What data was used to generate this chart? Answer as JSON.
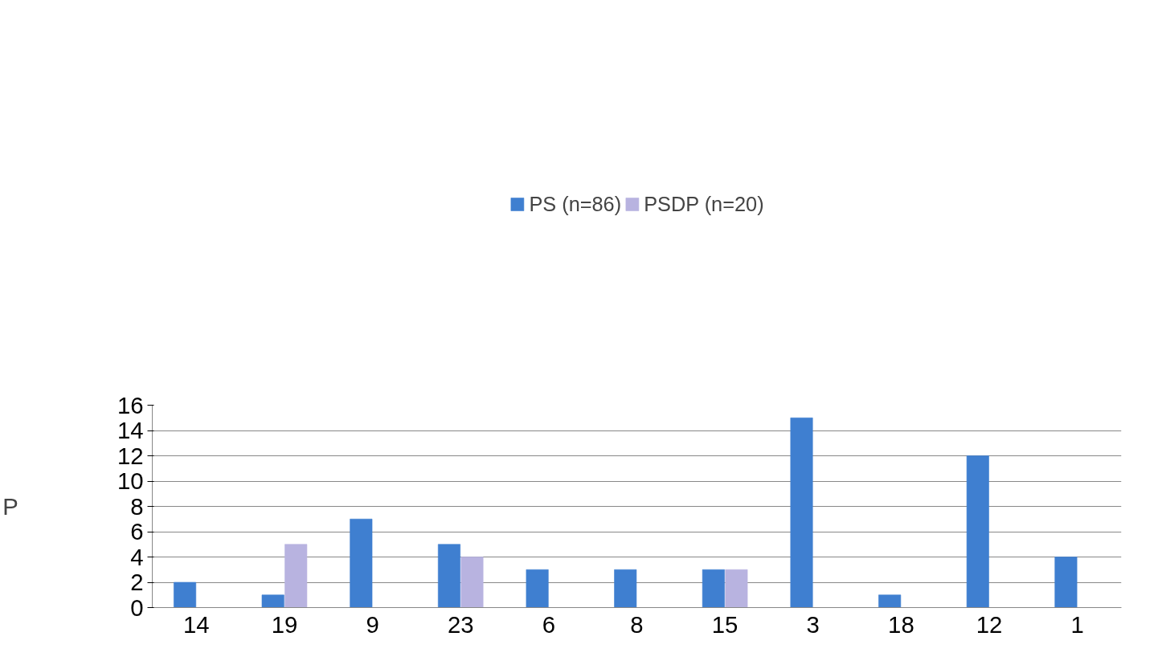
{
  "chart_data": {
    "type": "bar",
    "ylabel": "P",
    "categories": [
      "14",
      "19",
      "9",
      "23",
      "6",
      "8",
      "15",
      "3",
      "18",
      "12",
      "1"
    ],
    "series": [
      {
        "name": "PS (n=86)",
        "color": "#3f7fd0",
        "values": [
          2,
          1,
          7,
          5,
          3,
          3,
          3,
          15,
          1,
          12,
          4
        ]
      },
      {
        "name": "PSDP (n=20)",
        "color": "#b8b3e0",
        "values": [
          0,
          5,
          0,
          4,
          0,
          0,
          3,
          0,
          0,
          0,
          0
        ]
      }
    ],
    "ylim": [
      0,
      16
    ],
    "yticks": [
      0,
      2,
      4,
      6,
      8,
      10,
      12,
      14,
      16
    ],
    "grid": "y",
    "legend": "top"
  }
}
